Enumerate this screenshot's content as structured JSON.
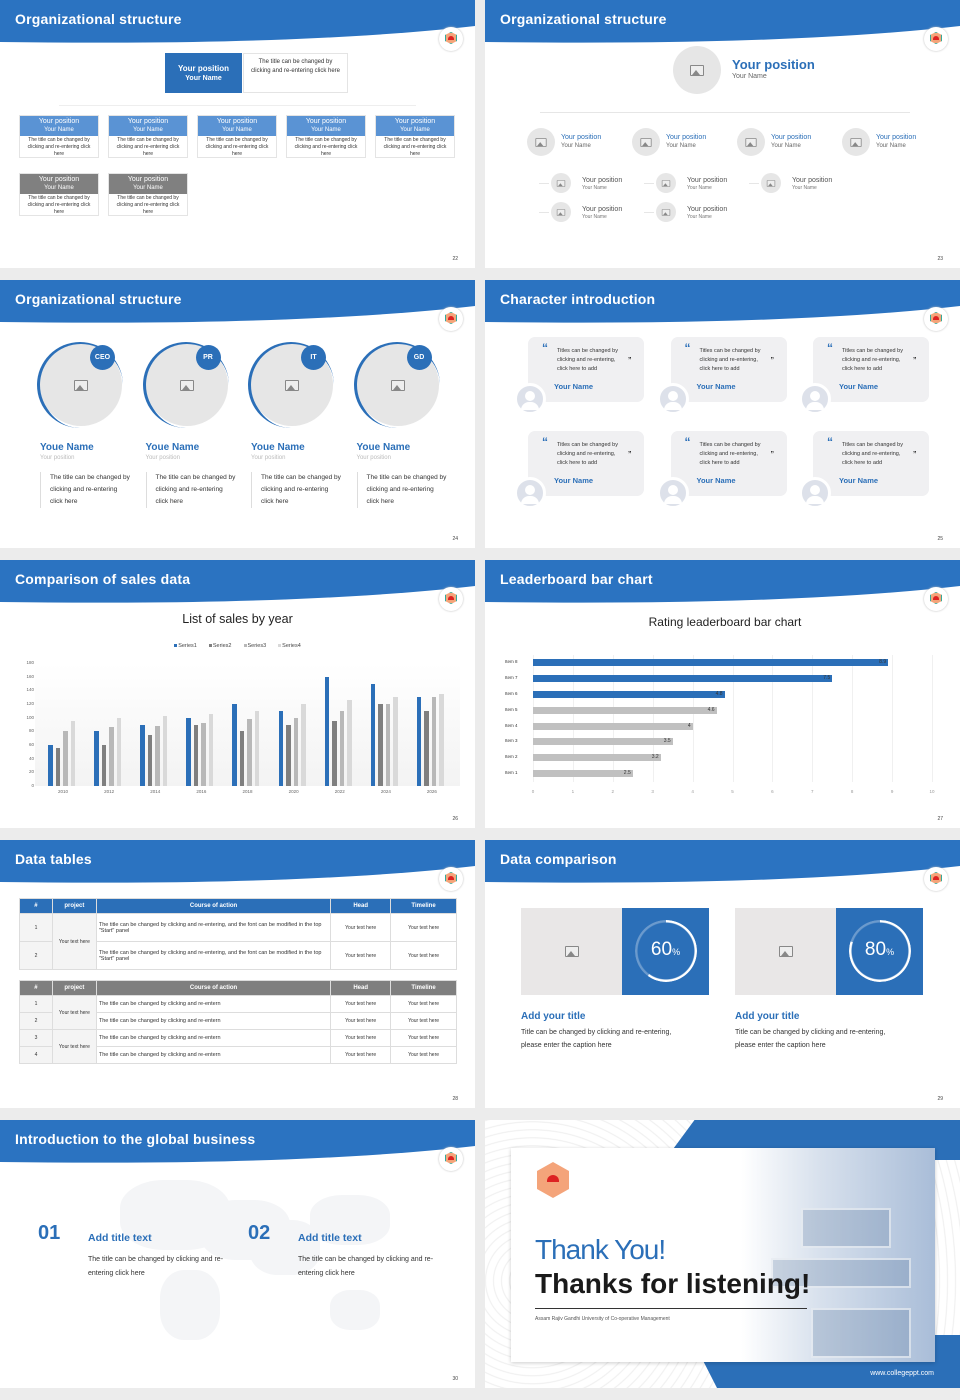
{
  "colors": {
    "accent": "#2b6fb8",
    "gray": "#7f7f7f",
    "light": "#f2f2f2"
  },
  "slides": [
    {
      "title": "Organizational structure",
      "page": "22",
      "top": {
        "position": "Your position",
        "name": "Your Name",
        "desc": "The title can be changed by clicking and re-entering click here"
      },
      "row1": [
        {
          "position": "Your position",
          "name": "Your Name",
          "desc": "The title can be changed by clicking and re-entering click here"
        },
        {
          "position": "Your position",
          "name": "Your Name",
          "desc": "The title can be changed by clicking and re-entering click here"
        },
        {
          "position": "Your position",
          "name": "Your Name",
          "desc": "The title can be changed by clicking and re-entering click here"
        },
        {
          "position": "Your position",
          "name": "Your Name",
          "desc": "The title can be changed by clicking and re-entering click here"
        },
        {
          "position": "Your position",
          "name": "Your Name",
          "desc": "The title can be changed by clicking and re-entering click here"
        }
      ],
      "row2": [
        {
          "position": "Your position",
          "name": "Your Name",
          "desc": "The title can be changed by clicking and re-entering click here"
        },
        {
          "position": "Your position",
          "name": "Your Name",
          "desc": "The title can be changed by clicking and re-entering click here"
        }
      ]
    },
    {
      "title": "Organizational structure",
      "page": "23",
      "top": {
        "position": "Your position",
        "name": "Your Name"
      },
      "level1": [
        {
          "position": "Your position",
          "name": "Your Name"
        },
        {
          "position": "Your position",
          "name": "Your Name"
        },
        {
          "position": "Your position",
          "name": "Your Name"
        },
        {
          "position": "Your position",
          "name": "Your Name"
        }
      ],
      "level2": [
        [
          {
            "position": "Your position",
            "name": "Your Name"
          },
          {
            "position": "Your position",
            "name": "Your Name"
          }
        ],
        [
          {
            "position": "Your position",
            "name": "Your Name"
          },
          {
            "position": "Your position",
            "name": "Your Name"
          }
        ],
        [
          {
            "position": "Your position",
            "name": "Your Name"
          }
        ]
      ]
    },
    {
      "title": "Organizational structure",
      "page": "24",
      "members": [
        {
          "badge": "CEO",
          "name": "Youe Name",
          "position": "Your position",
          "desc": "The title can be changed by clicking and re-entering click here"
        },
        {
          "badge": "PR",
          "name": "Youe Name",
          "position": "Your position",
          "desc": "The title can be changed by clicking and re-entering click here"
        },
        {
          "badge": "IT",
          "name": "Youe Name",
          "position": "Your position",
          "desc": "The title can be changed by clicking and re-entering click here"
        },
        {
          "badge": "GD",
          "name": "Youe Name",
          "position": "Your position",
          "desc": "The title can be changed by clicking and re-entering click here"
        }
      ]
    },
    {
      "title": "Character introduction",
      "page": "25",
      "quotes": [
        {
          "text": "Titles can be changed by clicking and re-entering, click here to add",
          "name": "Your Name"
        },
        {
          "text": "Titles can be changed by clicking and re-entering, click here to add",
          "name": "Your Name"
        },
        {
          "text": "Titles can be changed by clicking and re-entering, click here to add",
          "name": "Your Name"
        },
        {
          "text": "Titles can be changed by clicking and re-entering, click here to add",
          "name": "Your Name"
        },
        {
          "text": "Titles can be changed by clicking and re-entering, click here to add",
          "name": "Your Name"
        },
        {
          "text": "Titles can be changed by clicking and re-entering, click here to add",
          "name": "Your Name"
        }
      ]
    },
    {
      "title": "Comparison of sales data",
      "page": "26"
    },
    {
      "title": "Leaderboard bar chart",
      "page": "27"
    },
    {
      "title": "Data tables",
      "page": "28",
      "table1": {
        "headers": [
          "#",
          "project",
          "Course of action",
          "Head",
          "Timeline"
        ],
        "project": "Your text here",
        "rows": [
          [
            "1",
            "The title can be changed by clicking and re-entering, and the font can be modified in the top \"Start\" panel",
            "Your text here",
            "Your text here"
          ],
          [
            "2",
            "The title can be changed by clicking and re-entering, and the font can be modified in the top \"Start\" panel",
            "Your text here",
            "Your text here"
          ]
        ]
      },
      "table2": {
        "headers": [
          "#",
          "project",
          "Course of action",
          "Head",
          "Timeline"
        ],
        "projects": [
          "Your text here",
          "Your text here"
        ],
        "rows": [
          [
            "1",
            "The title can be changed by clicking and re-entern",
            "Your text here",
            "Your text here"
          ],
          [
            "2",
            "The title can be changed by clicking and re-entern",
            "Your text here",
            "Your text here"
          ],
          [
            "3",
            "The title can be changed by clicking and re-entern",
            "Your text here",
            "Your text here"
          ],
          [
            "4",
            "The title can be changed by clicking and re-entern",
            "Your text here",
            "Your text here"
          ]
        ]
      }
    },
    {
      "title": "Data comparison",
      "page": "29",
      "cards": [
        {
          "percent": 60,
          "label": "60",
          "unit": "%",
          "title": "Add your title",
          "desc": "Title can be changed by clicking and re-entering, please enter the caption here"
        },
        {
          "percent": 80,
          "label": "80",
          "unit": "%",
          "title": "Add your title",
          "desc": "Title can be changed by clicking and re-entering, please enter the caption here"
        }
      ]
    },
    {
      "title": "Introduction to the global business",
      "page": "30",
      "items": [
        {
          "num": "01",
          "title": "Add title text",
          "desc": "The title can be changed by clicking and re-entering click here"
        },
        {
          "num": "02",
          "title": "Add title text",
          "desc": "The title can be changed by clicking and re-entering click here"
        }
      ]
    },
    {
      "thanks": "Thank You!",
      "listening": "Thanks for listening!",
      "university": "Assam Rajiv Gandhi University of Co-operative Management",
      "website": "www.collegeppt.com"
    }
  ],
  "chart_data": [
    {
      "type": "bar",
      "title": "List of sales by year",
      "categories": [
        "2010",
        "2012",
        "2014",
        "2016",
        "2018",
        "2020",
        "2022",
        "2024",
        "2026"
      ],
      "series": [
        {
          "name": "Series1",
          "color": "#2b6fb8",
          "values": [
            60,
            80,
            90,
            100,
            120,
            110,
            160,
            150,
            130
          ]
        },
        {
          "name": "Series2",
          "color": "#7f7f7f",
          "values": [
            55,
            60,
            75,
            90,
            80,
            90,
            95,
            120,
            110
          ]
        },
        {
          "name": "Series3",
          "color": "#b8b8b8",
          "values": [
            80,
            86,
            88,
            92,
            98,
            100,
            110,
            120,
            130
          ]
        },
        {
          "name": "Series4",
          "color": "#d9d9d9",
          "values": [
            95,
            99,
            102,
            105,
            110,
            120,
            126,
            130,
            135
          ]
        }
      ],
      "ylim": [
        0,
        180
      ],
      "yticks": [
        0,
        20,
        40,
        60,
        80,
        100,
        120,
        140,
        160,
        180
      ],
      "legend": "top",
      "grid": false
    },
    {
      "type": "bar",
      "orientation": "horizontal",
      "title": "Rating leaderboard bar chart",
      "categories": [
        "Item 1",
        "Item 2",
        "Item 3",
        "Item 4",
        "Item 5",
        "Item 6",
        "Item 7",
        "Item 8"
      ],
      "values": [
        2.5,
        3.2,
        3.5,
        4,
        4.6,
        4.8,
        7.5,
        8.9
      ],
      "highlight": [
        "Item 6",
        "Item 7",
        "Item 8"
      ],
      "xlim": [
        0,
        10
      ],
      "xticks": [
        0,
        1,
        2,
        3,
        4,
        5,
        6,
        7,
        8,
        9,
        10
      ],
      "grid": true,
      "data_labels": true
    }
  ]
}
